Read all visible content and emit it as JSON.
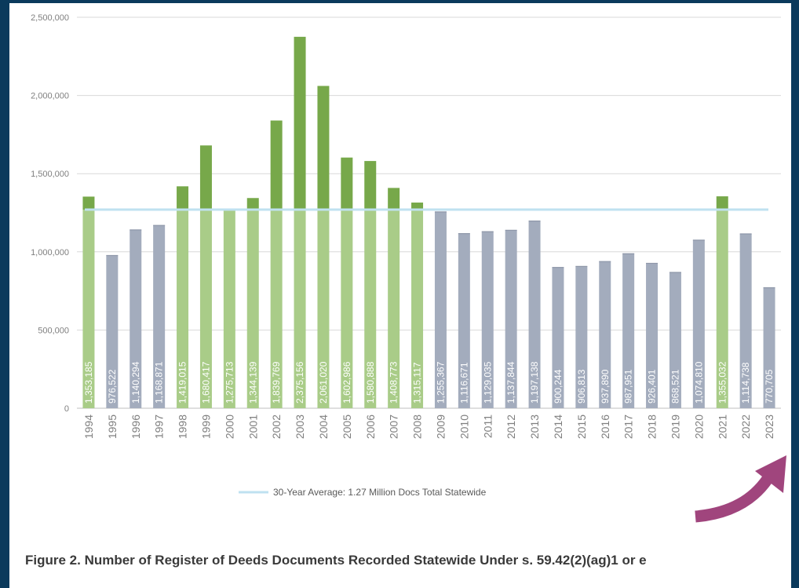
{
  "chart_data": {
    "type": "bar",
    "categories": [
      "1994",
      "1995",
      "1996",
      "1997",
      "1998",
      "1999",
      "2000",
      "2001",
      "2002",
      "2003",
      "2004",
      "2005",
      "2006",
      "2007",
      "2008",
      "2009",
      "2010",
      "2011",
      "2012",
      "2013",
      "2014",
      "2015",
      "2016",
      "2017",
      "2018",
      "2019",
      "2020",
      "2021",
      "2022",
      "2023"
    ],
    "values": [
      1353185,
      976522,
      1140294,
      1168871,
      1419015,
      1680417,
      1275713,
      1344139,
      1839769,
      2375156,
      2061020,
      1602986,
      1580888,
      1408773,
      1315117,
      1255367,
      1116671,
      1129035,
      1137844,
      1197138,
      900244,
      906813,
      937890,
      987951,
      926401,
      868521,
      1074810,
      1355032,
      1114738,
      770705
    ],
    "value_labels": [
      "1,353,185",
      "976,522",
      "1,140,294",
      "1,168,871",
      "1,419,015",
      "1,680,417",
      "1,275,713",
      "1,344,139",
      "1,839,769",
      "2,375,156",
      "2,061,020",
      "1,602,986",
      "1,580,888",
      "1,408,773",
      "1,315,117",
      "1,255,367",
      "1,116,671",
      "1,129,035",
      "1,137,844",
      "1,197,138",
      "900,244",
      "906,813",
      "937,890",
      "987,951",
      "926,401",
      "868,521",
      "1,074,810",
      "1,355,032",
      "1,114,738",
      "770,705"
    ],
    "average": 1270000,
    "legend": "30-Year Average: 1.27 Million Docs Total Statewide",
    "legend_position": "bottom",
    "ylim": [
      0,
      2500000
    ],
    "yticks": [
      0,
      500000,
      1000000,
      1500000,
      2000000,
      2500000
    ],
    "ytick_labels": [
      "0",
      "500,000",
      "1,000,000",
      "1,500,000",
      "2,000,000",
      "2,500,000"
    ],
    "grid": true,
    "colors": {
      "above_average_dark": "#77a84a",
      "above_average_light": "#a9cc88",
      "below_average": "#a3acbd",
      "average_line": "#bfe1f0",
      "grid": "#d9d9d9",
      "axis_text": "#7f7f7f",
      "arrow": "#a0457d"
    },
    "annotation": "magenta curved arrow pointing up-right at 2023"
  },
  "caption": "Figure 2. Number of Register of Deeds Documents Recorded Statewide Under s. 59.42(2)(ag)1 or e"
}
